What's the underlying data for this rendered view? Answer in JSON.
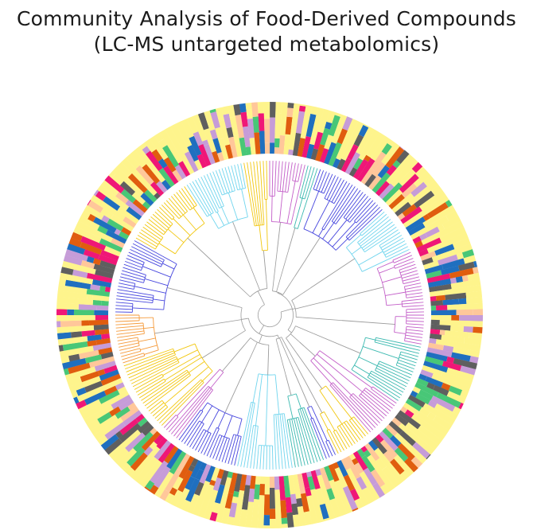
{
  "figure": {
    "title_line1": "Community Analysis of Food-Derived  Compounds",
    "title_line2": "(LC-MS untargeted metabolomics)",
    "type": "circular-dendrogram-with-stacked-bar-ring"
  },
  "colors": {
    "ring_palette": [
      "#fef48c",
      "#48c777",
      "#ef1777",
      "#e05d0f",
      "#1f6fbf",
      "#c69cd8",
      "#5f5f5f",
      "#ffc79a"
    ],
    "tree_palette": [
      "#f59a3a",
      "#c35ec8",
      "#4747de",
      "#3bb9b0",
      "#f59bc7",
      "#f2c70f",
      "#70d5ee",
      "#9b9b9b"
    ]
  }
}
